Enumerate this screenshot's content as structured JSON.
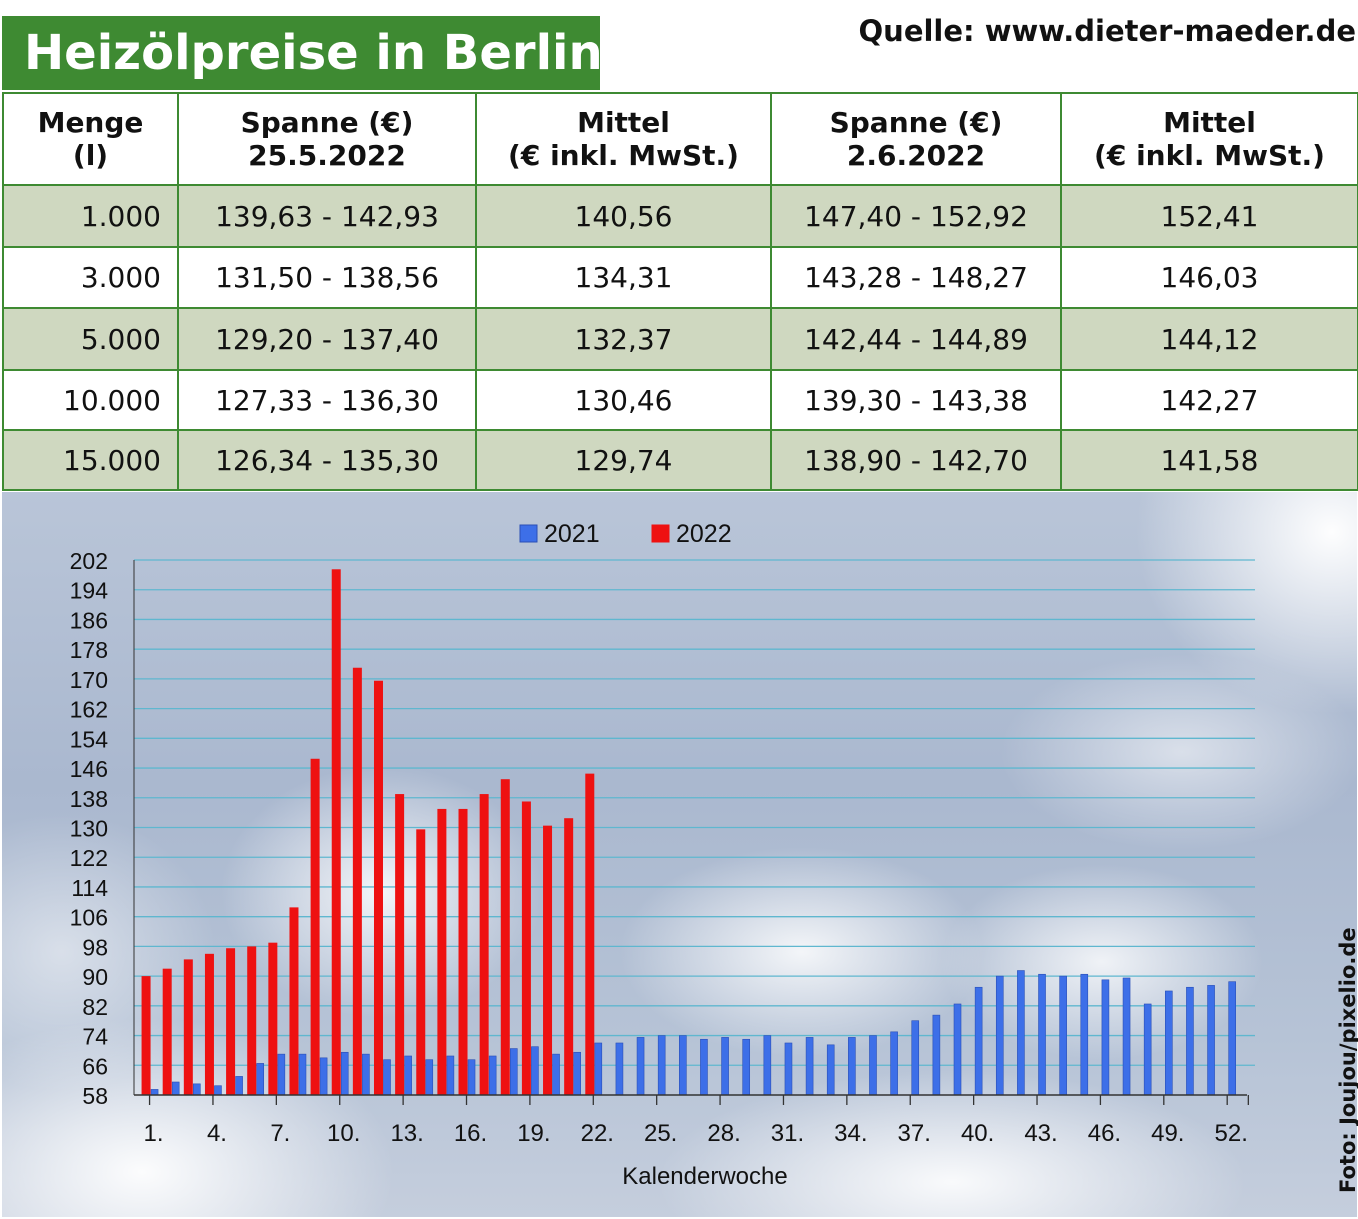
{
  "header": {
    "title": "Heizölpreise in Berlin",
    "source": "Quelle: www.dieter-maeder.de"
  },
  "table": {
    "headers": [
      [
        "Menge",
        "(l)"
      ],
      [
        "Spanne (€)",
        "25.5.2022"
      ],
      [
        "Mittel",
        "(€ inkl. MwSt.)"
      ],
      [
        "Spanne (€)",
        "2.6.2022"
      ],
      [
        "Mittel",
        "(€ inkl. MwSt.)"
      ]
    ],
    "rows": [
      [
        "1.000",
        "139,63 - 142,93",
        "140,56",
        "147,40 - 152,92",
        "152,41"
      ],
      [
        "3.000",
        "131,50 - 138,56",
        "134,31",
        "143,28 - 148,27",
        "146,03"
      ],
      [
        "5.000",
        "129,20 - 137,40",
        "132,37",
        "142,44 - 144,89",
        "144,12"
      ],
      [
        "10.000",
        "127,33 - 136,30",
        "130,46",
        "139,30 - 143,38",
        "142,27"
      ],
      [
        "15.000",
        "126,34 - 135,30",
        "129,74",
        "138,90 - 142,70",
        "141,58"
      ]
    ],
    "shade_color": "#cfd8c0",
    "border_color": "#3e8a32"
  },
  "chart_data": {
    "type": "bar",
    "xlabel": "Kalenderwoche",
    "ylabel": "",
    "ylim": [
      58,
      202
    ],
    "yticks": [
      58,
      66,
      74,
      82,
      90,
      98,
      106,
      114,
      122,
      130,
      138,
      146,
      154,
      162,
      170,
      178,
      186,
      194,
      202
    ],
    "x_tick_labels": [
      "1.",
      "4.",
      "7.",
      "10.",
      "13.",
      "16.",
      "19.",
      "22.",
      "25.",
      "28.",
      "31.",
      "34.",
      "37.",
      "40.",
      "43.",
      "46.",
      "49.",
      "52."
    ],
    "x_tick_weeks": [
      1,
      4,
      7,
      10,
      13,
      16,
      19,
      22,
      25,
      28,
      31,
      34,
      37,
      40,
      43,
      46,
      49,
      52
    ],
    "weeks": [
      1,
      2,
      3,
      4,
      5,
      6,
      7,
      8,
      9,
      10,
      11,
      12,
      13,
      14,
      15,
      16,
      17,
      18,
      19,
      20,
      21,
      22,
      23,
      24,
      25,
      26,
      27,
      28,
      29,
      30,
      31,
      32,
      33,
      34,
      35,
      36,
      37,
      38,
      39,
      40,
      41,
      42,
      43,
      44,
      45,
      46,
      47,
      48,
      49,
      50,
      51,
      52
    ],
    "legend_position": "top-center",
    "grid": true,
    "series": [
      {
        "name": "2021",
        "color": "#3d6fe8",
        "values": [
          59.5,
          61.5,
          61,
          60.5,
          63,
          66.5,
          69,
          69,
          68,
          69.5,
          69,
          67.5,
          68.5,
          67.5,
          68.5,
          67.5,
          68.5,
          70.5,
          71,
          69,
          69.5,
          72,
          72,
          73.5,
          74,
          74,
          73,
          73.5,
          73,
          74,
          72,
          73.5,
          71.5,
          73.5,
          74,
          75,
          78,
          79.5,
          82.5,
          87,
          90,
          91.5,
          90.5,
          90,
          90.5,
          89,
          89.5,
          82.5,
          86,
          87,
          87.5,
          88.5
        ]
      },
      {
        "name": "2022",
        "color": "#ee1111",
        "values": [
          90,
          92,
          94.5,
          96,
          97.5,
          98,
          99,
          108.5,
          148.5,
          199.5,
          173,
          169.5,
          139,
          129.5,
          135,
          135,
          139,
          143,
          137,
          130.5,
          132.5,
          144.5
        ]
      }
    ]
  },
  "credit": "Foto: Joujou/pixelio.de"
}
